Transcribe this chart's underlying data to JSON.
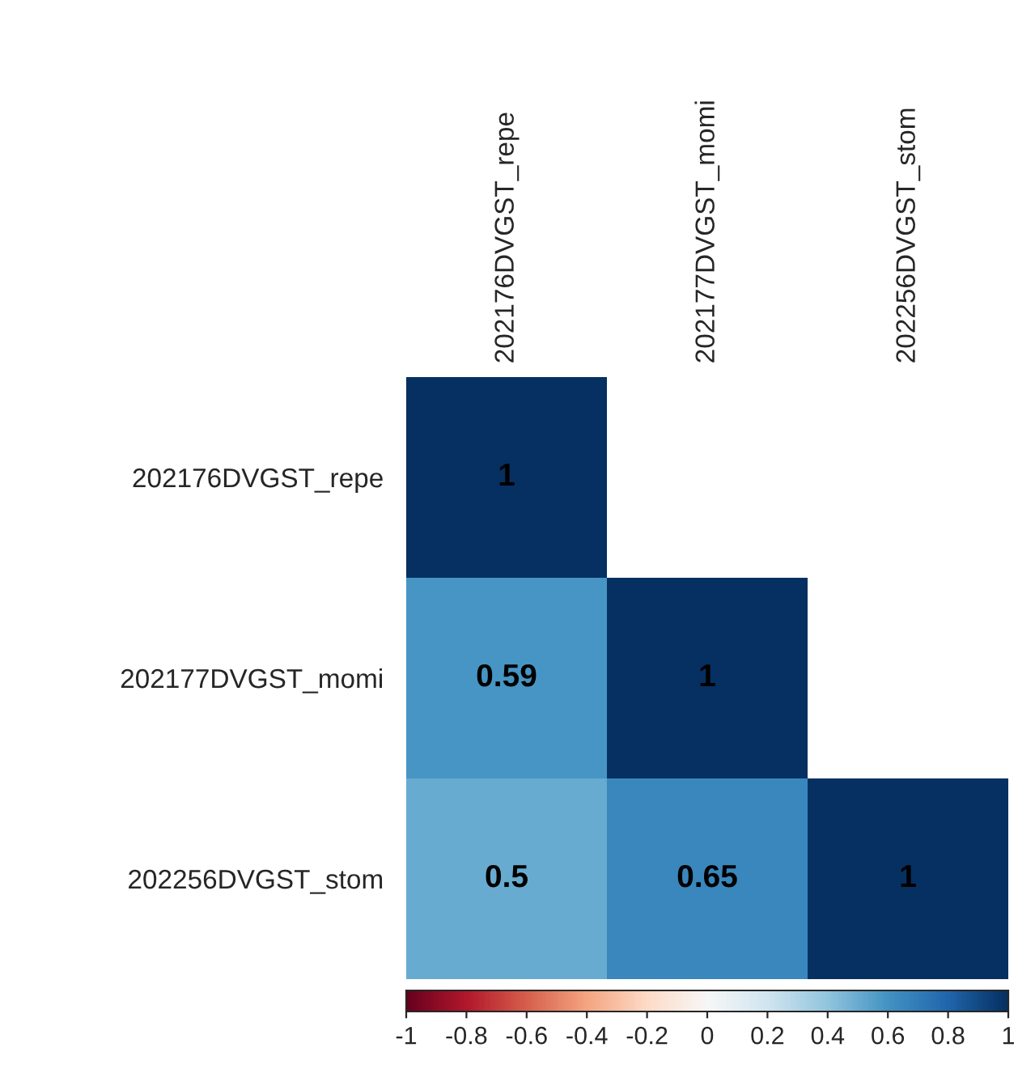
{
  "chart_data": {
    "type": "heatmap",
    "categories": [
      "202176DVGST_repe",
      "202177DVGST_momi",
      "202256DVGST_stom"
    ],
    "y_categories": [
      "202176DVGST_repe",
      "202177DVGST_momi",
      "202256DVGST_stom"
    ],
    "cells": [
      [
        1,
        null,
        null
      ],
      [
        0.59,
        1,
        null
      ],
      [
        0.5,
        0.65,
        1
      ]
    ],
    "data_labels": true,
    "clim": [
      -1,
      1
    ],
    "cticks": [
      -1,
      -0.8,
      -0.6,
      -0.4,
      -0.2,
      0,
      0.2,
      0.4,
      0.6,
      0.8,
      1
    ]
  }
}
